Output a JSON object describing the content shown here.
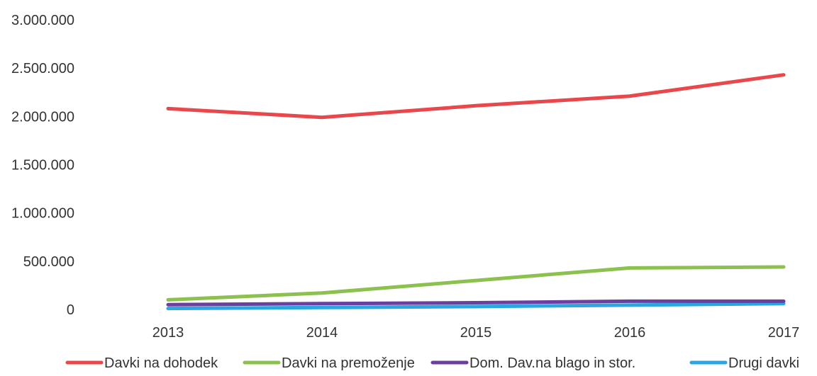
{
  "chart_data": {
    "type": "line",
    "title": "",
    "xlabel": "",
    "ylabel": "",
    "categories": [
      "2013",
      "2014",
      "2015",
      "2016",
      "2017"
    ],
    "y_ticks": [
      "0",
      "500.000",
      "1.000.000",
      "1.500.000",
      "2.000.000",
      "2.500.000",
      "3.000.000"
    ],
    "ylim": [
      0,
      3000000
    ],
    "grid": false,
    "legend_position": "bottom",
    "series": [
      {
        "name": "Davki na dohodek",
        "color": "#e8474b",
        "values": [
          2080000,
          1990000,
          2110000,
          2210000,
          2430000
        ]
      },
      {
        "name": "Davki na premoženje",
        "color": "#8cc04f",
        "values": [
          100000,
          170000,
          300000,
          430000,
          440000
        ]
      },
      {
        "name": "Dom. Dav.na blago in stor.",
        "color": "#6b3fa0",
        "values": [
          50000,
          60000,
          70000,
          85000,
          85000
        ]
      },
      {
        "name": "Drugi davki",
        "color": "#2aa6e0",
        "values": [
          10000,
          20000,
          30000,
          45000,
          60000
        ]
      }
    ]
  }
}
